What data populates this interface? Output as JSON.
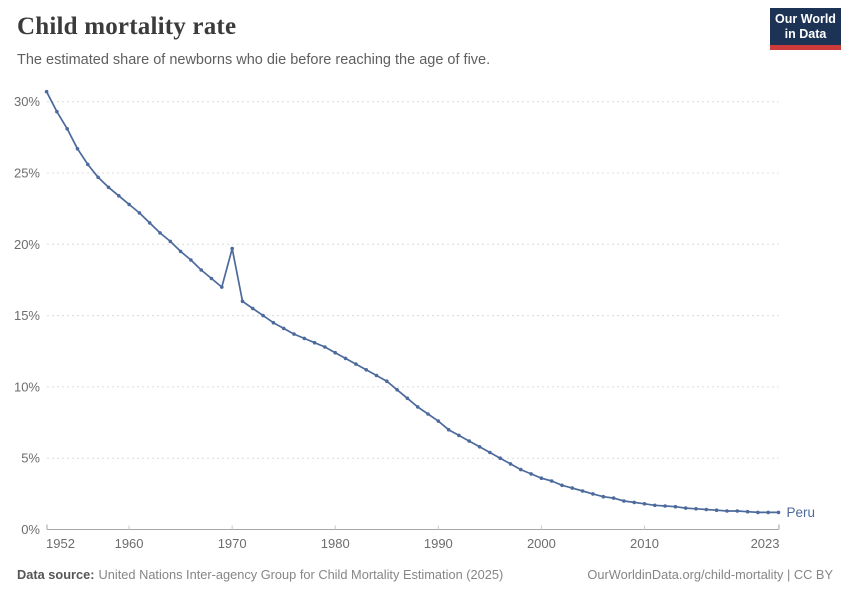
{
  "header": {
    "title": "Child mortality rate",
    "subtitle": "The estimated share of newborns who die before reaching the age of five."
  },
  "logo": {
    "line1": "Our World",
    "line2": "in Data",
    "bg_color": "#1d3356",
    "bar_color": "#cc3a3a"
  },
  "chart_data": {
    "type": "line",
    "title": "Child mortality rate",
    "unit": "%",
    "grid": "horizontal-dashed",
    "legend": "end-of-line-label",
    "entity_label": "Peru",
    "line_color": "#4c6a9c",
    "axis_color": "#a6a6a6",
    "tick_label_color": "#6d6d6d",
    "gridline_color": "#dcdcdc",
    "xlim": [
      1952,
      2023
    ],
    "ylim": [
      0,
      30
    ],
    "xticks": [
      1952,
      1960,
      1970,
      1980,
      1990,
      2000,
      2010,
      2023
    ],
    "xtick_labels": [
      "1952",
      "1960",
      "1970",
      "1980",
      "1990",
      "2000",
      "2010",
      "2023"
    ],
    "yticks": [
      0,
      5,
      10,
      15,
      20,
      25,
      30
    ],
    "ytick_labels": [
      "0%",
      "5%",
      "10%",
      "15%",
      "20%",
      "25%",
      "30%"
    ],
    "x": [
      1952,
      1953,
      1954,
      1955,
      1956,
      1957,
      1958,
      1959,
      1960,
      1961,
      1962,
      1963,
      1964,
      1965,
      1966,
      1967,
      1968,
      1969,
      1970,
      1971,
      1972,
      1973,
      1974,
      1975,
      1976,
      1977,
      1978,
      1979,
      1980,
      1981,
      1982,
      1983,
      1984,
      1985,
      1986,
      1987,
      1988,
      1989,
      1990,
      1991,
      1992,
      1993,
      1994,
      1995,
      1996,
      1997,
      1998,
      1999,
      2000,
      2001,
      2002,
      2003,
      2004,
      2005,
      2006,
      2007,
      2008,
      2009,
      2010,
      2011,
      2012,
      2013,
      2014,
      2015,
      2016,
      2017,
      2018,
      2019,
      2020,
      2021,
      2022,
      2023
    ],
    "series": [
      {
        "name": "Peru",
        "values": [
          30.7,
          29.3,
          28.1,
          26.7,
          25.6,
          24.7,
          24.0,
          23.4,
          22.8,
          22.2,
          21.5,
          20.8,
          20.2,
          19.5,
          18.9,
          18.2,
          17.6,
          17.0,
          19.7,
          16.0,
          15.5,
          15.0,
          14.5,
          14.1,
          13.7,
          13.4,
          13.1,
          12.8,
          12.4,
          12.0,
          11.6,
          11.2,
          10.8,
          10.4,
          9.8,
          9.2,
          8.6,
          8.1,
          7.6,
          7.0,
          6.6,
          6.2,
          5.8,
          5.4,
          5.0,
          4.6,
          4.2,
          3.9,
          3.6,
          3.4,
          3.1,
          2.9,
          2.7,
          2.5,
          2.3,
          2.2,
          2.0,
          1.9,
          1.8,
          1.7,
          1.65,
          1.6,
          1.5,
          1.45,
          1.4,
          1.35,
          1.3,
          1.3,
          1.25,
          1.2,
          1.2,
          1.2
        ]
      }
    ]
  },
  "footer": {
    "source_label": "Data source:",
    "source_text": "United Nations Inter-agency Group for Child Mortality Estimation (2025)",
    "right_text": "OurWorldinData.org/child-mortality | CC BY"
  }
}
